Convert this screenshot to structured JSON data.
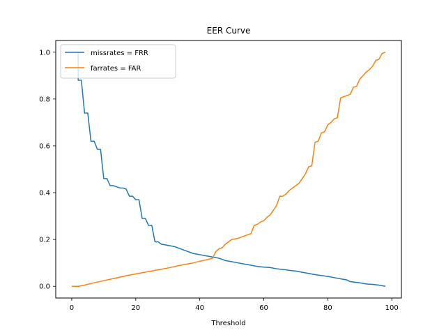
{
  "chart_data": {
    "type": "line",
    "title": "EER Curve",
    "xlabel": "Threshold",
    "ylabel": "",
    "xlim": [
      -5,
      103
    ],
    "ylim": [
      -0.05,
      1.05
    ],
    "xticks": [
      0,
      20,
      40,
      60,
      80,
      100
    ],
    "yticks": [
      0.0,
      0.2,
      0.4,
      0.6,
      0.8,
      1.0
    ],
    "xtick_labels": [
      "0",
      "20",
      "40",
      "60",
      "80",
      "100"
    ],
    "ytick_labels": [
      "0.0",
      "0.2",
      "0.4",
      "0.6",
      "0.8",
      "1.0"
    ],
    "grid": false,
    "legend_position": "top-left",
    "series": [
      {
        "name": "missrates = FRR",
        "color": "#1f77b4",
        "points": [
          [
            0,
            1.0
          ],
          [
            1,
            1.0
          ],
          [
            2,
            1.0
          ],
          [
            2,
            0.88
          ],
          [
            3,
            0.88
          ],
          [
            4,
            0.74
          ],
          [
            5,
            0.74
          ],
          [
            6,
            0.62
          ],
          [
            7,
            0.62
          ],
          [
            8,
            0.585
          ],
          [
            9,
            0.585
          ],
          [
            10,
            0.46
          ],
          [
            11,
            0.46
          ],
          [
            12,
            0.43
          ],
          [
            13,
            0.43
          ],
          [
            14,
            0.425
          ],
          [
            15,
            0.42
          ],
          [
            16,
            0.42
          ],
          [
            17,
            0.415
          ],
          [
            18,
            0.385
          ],
          [
            19,
            0.385
          ],
          [
            20,
            0.37
          ],
          [
            21,
            0.37
          ],
          [
            22,
            0.29
          ],
          [
            23,
            0.29
          ],
          [
            24,
            0.26
          ],
          [
            25,
            0.26
          ],
          [
            26,
            0.19
          ],
          [
            27,
            0.19
          ],
          [
            28,
            0.18
          ],
          [
            30,
            0.175
          ],
          [
            32,
            0.17
          ],
          [
            34,
            0.16
          ],
          [
            36,
            0.15
          ],
          [
            38,
            0.14
          ],
          [
            40,
            0.135
          ],
          [
            42,
            0.13
          ],
          [
            44,
            0.125
          ],
          [
            46,
            0.12
          ],
          [
            48,
            0.11
          ],
          [
            50,
            0.105
          ],
          [
            52,
            0.1
          ],
          [
            54,
            0.095
          ],
          [
            56,
            0.09
          ],
          [
            58,
            0.085
          ],
          [
            60,
            0.082
          ],
          [
            62,
            0.08
          ],
          [
            64,
            0.075
          ],
          [
            66,
            0.072
          ],
          [
            68,
            0.068
          ],
          [
            70,
            0.065
          ],
          [
            72,
            0.06
          ],
          [
            74,
            0.055
          ],
          [
            76,
            0.05
          ],
          [
            78,
            0.046
          ],
          [
            80,
            0.042
          ],
          [
            82,
            0.037
          ],
          [
            84,
            0.032
          ],
          [
            86,
            0.027
          ],
          [
            87,
            0.02
          ],
          [
            90,
            0.015
          ],
          [
            92,
            0.01
          ],
          [
            94,
            0.008
          ],
          [
            96,
            0.005
          ],
          [
            98,
            0.0
          ]
        ]
      },
      {
        "name": "farrates = FAR",
        "color": "#ff7f0e",
        "points": [
          [
            0,
            0.0
          ],
          [
            2,
            0.0
          ],
          [
            4,
            0.005
          ],
          [
            6,
            0.012
          ],
          [
            8,
            0.018
          ],
          [
            10,
            0.024
          ],
          [
            12,
            0.03
          ],
          [
            14,
            0.036
          ],
          [
            16,
            0.042
          ],
          [
            18,
            0.048
          ],
          [
            20,
            0.053
          ],
          [
            22,
            0.058
          ],
          [
            24,
            0.063
          ],
          [
            26,
            0.068
          ],
          [
            28,
            0.073
          ],
          [
            30,
            0.078
          ],
          [
            32,
            0.084
          ],
          [
            34,
            0.09
          ],
          [
            36,
            0.095
          ],
          [
            38,
            0.1
          ],
          [
            40,
            0.107
          ],
          [
            42,
            0.113
          ],
          [
            44,
            0.12
          ],
          [
            45,
            0.148
          ],
          [
            46,
            0.16
          ],
          [
            47,
            0.165
          ],
          [
            48,
            0.18
          ],
          [
            49,
            0.19
          ],
          [
            50,
            0.2
          ],
          [
            52,
            0.205
          ],
          [
            54,
            0.215
          ],
          [
            56,
            0.225
          ],
          [
            57,
            0.26
          ],
          [
            58,
            0.265
          ],
          [
            59,
            0.275
          ],
          [
            60,
            0.28
          ],
          [
            61,
            0.295
          ],
          [
            62,
            0.305
          ],
          [
            63,
            0.325
          ],
          [
            64,
            0.345
          ],
          [
            65,
            0.385
          ],
          [
            66,
            0.385
          ],
          [
            67,
            0.395
          ],
          [
            68,
            0.41
          ],
          [
            69,
            0.42
          ],
          [
            70,
            0.43
          ],
          [
            71,
            0.44
          ],
          [
            72,
            0.46
          ],
          [
            73,
            0.48
          ],
          [
            74,
            0.51
          ],
          [
            75,
            0.515
          ],
          [
            76,
            0.615
          ],
          [
            77,
            0.62
          ],
          [
            78,
            0.655
          ],
          [
            79,
            0.66
          ],
          [
            80,
            0.69
          ],
          [
            81,
            0.7
          ],
          [
            82,
            0.715
          ],
          [
            83,
            0.72
          ],
          [
            84,
            0.805
          ],
          [
            85,
            0.81
          ],
          [
            86,
            0.815
          ],
          [
            87,
            0.82
          ],
          [
            88,
            0.85
          ],
          [
            89,
            0.855
          ],
          [
            90,
            0.885
          ],
          [
            91,
            0.9
          ],
          [
            92,
            0.915
          ],
          [
            93,
            0.925
          ],
          [
            94,
            0.94
          ],
          [
            95,
            0.965
          ],
          [
            96,
            0.97
          ],
          [
            97,
            0.995
          ],
          [
            98,
            1.0
          ]
        ]
      }
    ]
  }
}
